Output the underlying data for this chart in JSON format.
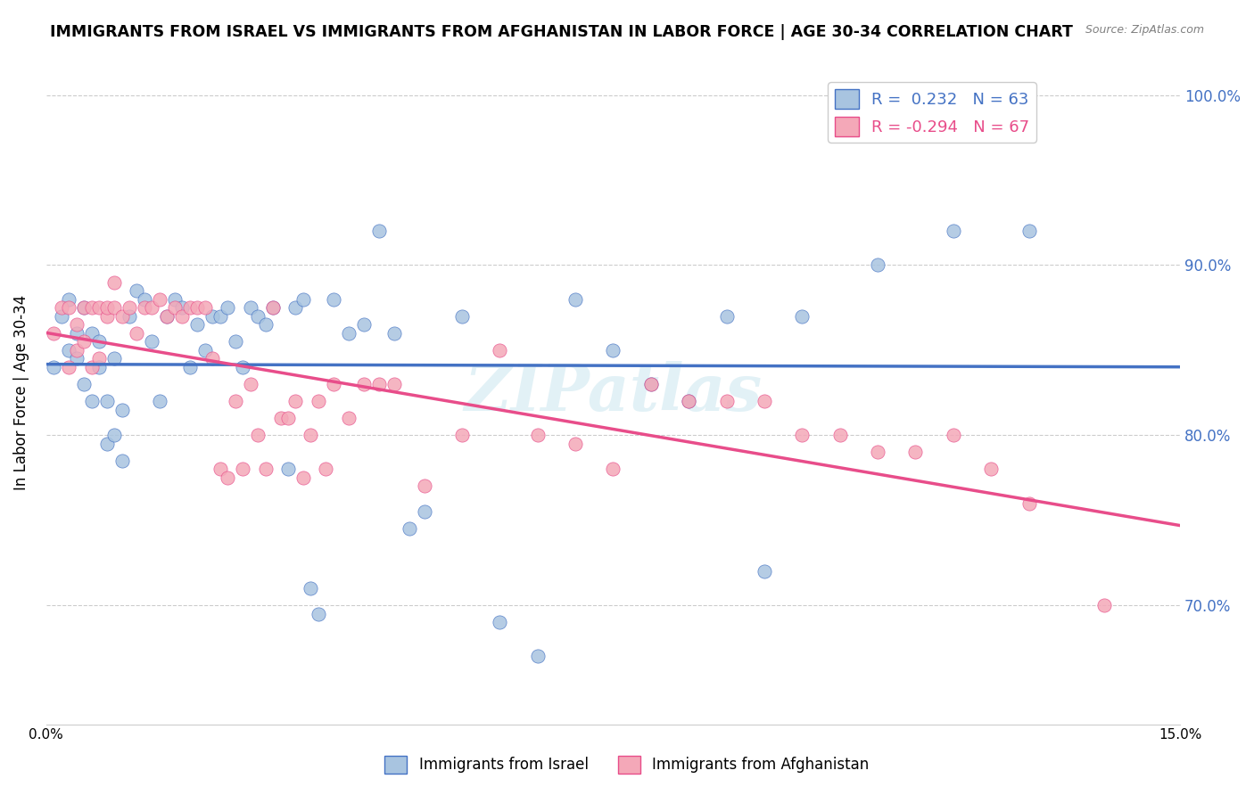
{
  "title": "IMMIGRANTS FROM ISRAEL VS IMMIGRANTS FROM AFGHANISTAN IN LABOR FORCE | AGE 30-34 CORRELATION CHART",
  "source": "Source: ZipAtlas.com",
  "ylabel": "In Labor Force | Age 30-34",
  "y_ticks": [
    0.7,
    0.8,
    0.9,
    1.0
  ],
  "y_tick_labels": [
    "70.0%",
    "80.0%",
    "90.0%",
    "100.0%"
  ],
  "xlim": [
    0.0,
    0.15
  ],
  "ylim": [
    0.63,
    1.02
  ],
  "R_israel": 0.232,
  "N_israel": 63,
  "R_afghanistan": -0.294,
  "N_afghanistan": 67,
  "color_israel": "#a8c4e0",
  "color_afghanistan": "#f4a8b8",
  "line_color_israel": "#4472c4",
  "line_color_afghanistan": "#e84d8a",
  "watermark": "ZIPatlas",
  "israel_x": [
    0.001,
    0.002,
    0.003,
    0.003,
    0.004,
    0.004,
    0.005,
    0.005,
    0.006,
    0.006,
    0.007,
    0.007,
    0.008,
    0.008,
    0.009,
    0.009,
    0.01,
    0.01,
    0.011,
    0.012,
    0.013,
    0.014,
    0.015,
    0.016,
    0.017,
    0.018,
    0.019,
    0.02,
    0.021,
    0.022,
    0.023,
    0.024,
    0.025,
    0.026,
    0.027,
    0.028,
    0.029,
    0.03,
    0.032,
    0.033,
    0.034,
    0.035,
    0.036,
    0.038,
    0.04,
    0.042,
    0.044,
    0.046,
    0.048,
    0.05,
    0.055,
    0.06,
    0.065,
    0.07,
    0.075,
    0.08,
    0.085,
    0.09,
    0.095,
    0.1,
    0.11,
    0.12,
    0.13
  ],
  "israel_y": [
    0.84,
    0.87,
    0.85,
    0.88,
    0.845,
    0.86,
    0.83,
    0.875,
    0.82,
    0.86,
    0.855,
    0.84,
    0.795,
    0.82,
    0.8,
    0.845,
    0.785,
    0.815,
    0.87,
    0.885,
    0.88,
    0.855,
    0.82,
    0.87,
    0.88,
    0.875,
    0.84,
    0.865,
    0.85,
    0.87,
    0.87,
    0.875,
    0.855,
    0.84,
    0.875,
    0.87,
    0.865,
    0.875,
    0.78,
    0.875,
    0.88,
    0.71,
    0.695,
    0.88,
    0.86,
    0.865,
    0.92,
    0.86,
    0.745,
    0.755,
    0.87,
    0.69,
    0.67,
    0.88,
    0.85,
    0.83,
    0.82,
    0.87,
    0.72,
    0.87,
    0.9,
    0.92,
    0.92
  ],
  "afghanistan_x": [
    0.001,
    0.002,
    0.003,
    0.003,
    0.004,
    0.004,
    0.005,
    0.005,
    0.006,
    0.006,
    0.007,
    0.007,
    0.008,
    0.008,
    0.009,
    0.009,
    0.01,
    0.011,
    0.012,
    0.013,
    0.014,
    0.015,
    0.016,
    0.017,
    0.018,
    0.019,
    0.02,
    0.021,
    0.022,
    0.023,
    0.024,
    0.025,
    0.026,
    0.027,
    0.028,
    0.029,
    0.03,
    0.031,
    0.032,
    0.033,
    0.034,
    0.035,
    0.036,
    0.037,
    0.038,
    0.04,
    0.042,
    0.044,
    0.046,
    0.05,
    0.055,
    0.06,
    0.065,
    0.07,
    0.075,
    0.08,
    0.085,
    0.09,
    0.095,
    0.1,
    0.105,
    0.11,
    0.115,
    0.12,
    0.125,
    0.13,
    0.14
  ],
  "afghanistan_y": [
    0.86,
    0.875,
    0.84,
    0.875,
    0.85,
    0.865,
    0.855,
    0.875,
    0.84,
    0.875,
    0.845,
    0.875,
    0.87,
    0.875,
    0.875,
    0.89,
    0.87,
    0.875,
    0.86,
    0.875,
    0.875,
    0.88,
    0.87,
    0.875,
    0.87,
    0.875,
    0.875,
    0.875,
    0.845,
    0.78,
    0.775,
    0.82,
    0.78,
    0.83,
    0.8,
    0.78,
    0.875,
    0.81,
    0.81,
    0.82,
    0.775,
    0.8,
    0.82,
    0.78,
    0.83,
    0.81,
    0.83,
    0.83,
    0.83,
    0.77,
    0.8,
    0.85,
    0.8,
    0.795,
    0.78,
    0.83,
    0.82,
    0.82,
    0.82,
    0.8,
    0.8,
    0.79,
    0.79,
    0.8,
    0.78,
    0.76,
    0.7
  ]
}
